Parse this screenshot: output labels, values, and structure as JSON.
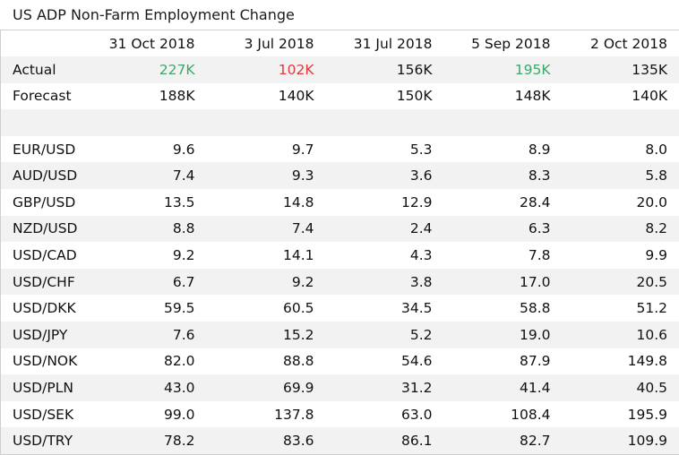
{
  "title": "US ADP Non-Farm Employment Change",
  "colors": {
    "up": "#3fa66b",
    "down": "#e0393b",
    "stripe": "#f2f2f2"
  },
  "columns": [
    "31 Oct 2018",
    "3 Jul 2018",
    "31 Jul 2018",
    "5 Sep 2018",
    "2 Oct 2018"
  ],
  "actual": {
    "label": "Actual",
    "values": [
      "227K",
      "102K",
      "156K",
      "195K",
      "135K"
    ],
    "trend": [
      "up",
      "down",
      "none",
      "up",
      "none"
    ]
  },
  "forecast": {
    "label": "Forecast",
    "values": [
      "188K",
      "140K",
      "150K",
      "148K",
      "140K"
    ]
  },
  "pairs": [
    {
      "name": "EUR/USD",
      "values": [
        "9.6",
        "9.7",
        "5.3",
        "8.9",
        "8.0"
      ]
    },
    {
      "name": "AUD/USD",
      "values": [
        "7.4",
        "9.3",
        "3.6",
        "8.3",
        "5.8"
      ]
    },
    {
      "name": "GBP/USD",
      "values": [
        "13.5",
        "14.8",
        "12.9",
        "28.4",
        "20.0"
      ]
    },
    {
      "name": "NZD/USD",
      "values": [
        "8.8",
        "7.4",
        "2.4",
        "6.3",
        "8.2"
      ]
    },
    {
      "name": "USD/CAD",
      "values": [
        "9.2",
        "14.1",
        "4.3",
        "7.8",
        "9.9"
      ]
    },
    {
      "name": "USD/CHF",
      "values": [
        "6.7",
        "9.2",
        "3.8",
        "17.0",
        "20.5"
      ]
    },
    {
      "name": "USD/DKK",
      "values": [
        "59.5",
        "60.5",
        "34.5",
        "58.8",
        "51.2"
      ]
    },
    {
      "name": "USD/JPY",
      "values": [
        "7.6",
        "15.2",
        "5.2",
        "19.0",
        "10.6"
      ]
    },
    {
      "name": "USD/NOK",
      "values": [
        "82.0",
        "88.8",
        "54.6",
        "87.9",
        "149.8"
      ]
    },
    {
      "name": "USD/PLN",
      "values": [
        "43.0",
        "69.9",
        "31.2",
        "41.4",
        "40.5"
      ]
    },
    {
      "name": "USD/SEK",
      "values": [
        "99.0",
        "137.8",
        "63.0",
        "108.4",
        "195.9"
      ]
    },
    {
      "name": "USD/TRY",
      "values": [
        "78.2",
        "83.6",
        "86.1",
        "82.7",
        "109.9"
      ]
    }
  ]
}
